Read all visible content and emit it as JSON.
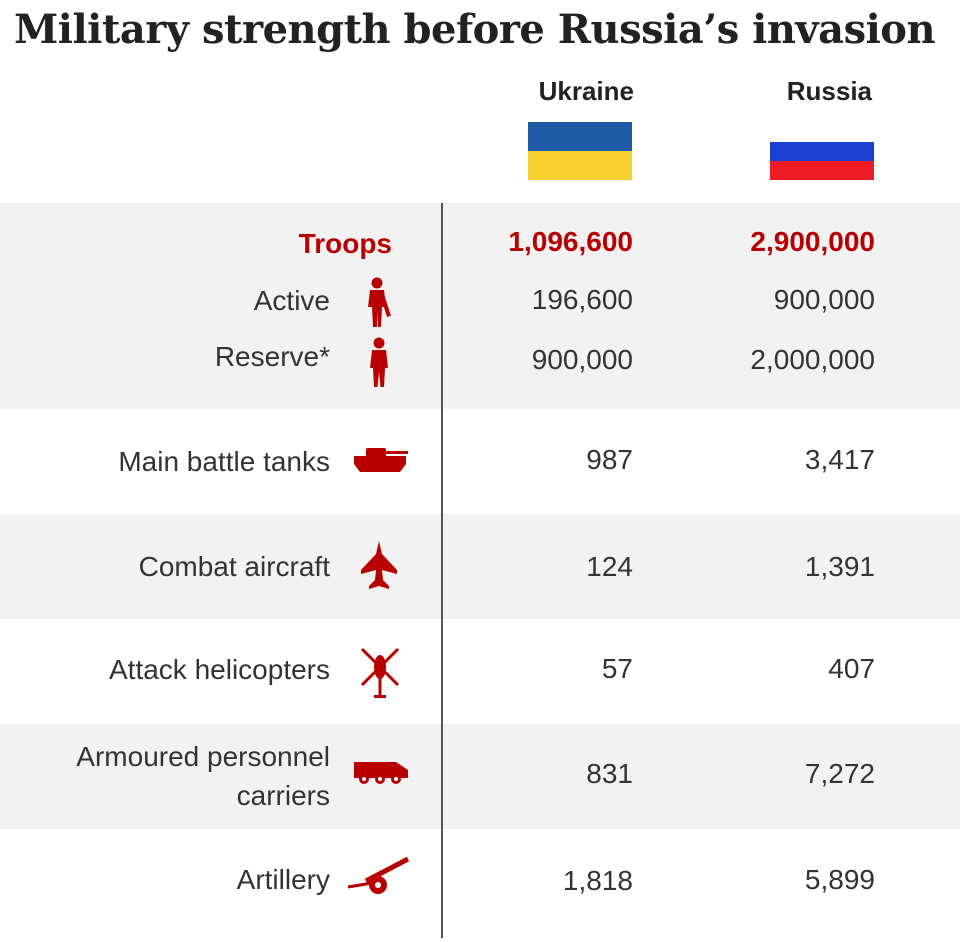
{
  "title": "Military strength before Russia’s invasion",
  "columns": [
    {
      "name": "Ukraine",
      "flag": [
        "#1f5aa6",
        "#f5d030"
      ]
    },
    {
      "name": "Russia",
      "flag": [
        "#ffffff",
        "#1c3fd3",
        "#ee1c25"
      ]
    }
  ],
  "colors": {
    "accent": "#b80000",
    "band_light": "#f2f2f2",
    "band_white": "#ffffff",
    "divider": "#555555"
  },
  "rows": [
    {
      "key": "troops",
      "label": "Troops",
      "ukraine": "1,096,600",
      "russia": "2,900,000",
      "highlight": true
    },
    {
      "key": "active",
      "label": "Active",
      "ukraine": "196,600",
      "russia": "900,000",
      "icon": "soldier-armed-icon"
    },
    {
      "key": "reserve",
      "label": "Reserve*",
      "ukraine": "900,000",
      "russia": "2,000,000",
      "icon": "person-icon"
    },
    {
      "key": "tanks",
      "label": "Main battle tanks",
      "ukraine": "987",
      "russia": "3,417",
      "icon": "tank-icon"
    },
    {
      "key": "aircraft",
      "label": "Combat aircraft",
      "ukraine": "124",
      "russia": "1,391",
      "icon": "fighter-jet-icon"
    },
    {
      "key": "helicopters",
      "label": "Attack helicopters",
      "ukraine": "57",
      "russia": "407",
      "icon": "helicopter-icon"
    },
    {
      "key": "apc",
      "label_lines": [
        "Armoured personnel",
        "carriers"
      ],
      "ukraine": "831",
      "russia": "7,272",
      "icon": "armoured-vehicle-icon"
    },
    {
      "key": "artillery",
      "label": "Artillery",
      "ukraine": "1,818",
      "russia": "5,899",
      "icon": "artillery-icon"
    }
  ],
  "chart_data": {
    "type": "table",
    "title": "Military strength before Russia’s invasion",
    "columns": [
      "Ukraine",
      "Russia"
    ],
    "rows": [
      {
        "category": "Troops",
        "values": [
          1096600,
          2900000
        ]
      },
      {
        "category": "Active",
        "values": [
          196600,
          900000
        ]
      },
      {
        "category": "Reserve*",
        "values": [
          900000,
          2000000
        ]
      },
      {
        "category": "Main battle tanks",
        "values": [
          987,
          3417
        ]
      },
      {
        "category": "Combat aircraft",
        "values": [
          124,
          1391
        ]
      },
      {
        "category": "Attack helicopters",
        "values": [
          57,
          407
        ]
      },
      {
        "category": "Armoured personnel carriers",
        "values": [
          831,
          7272
        ]
      },
      {
        "category": "Artillery",
        "values": [
          1818,
          5899
        ]
      }
    ]
  }
}
